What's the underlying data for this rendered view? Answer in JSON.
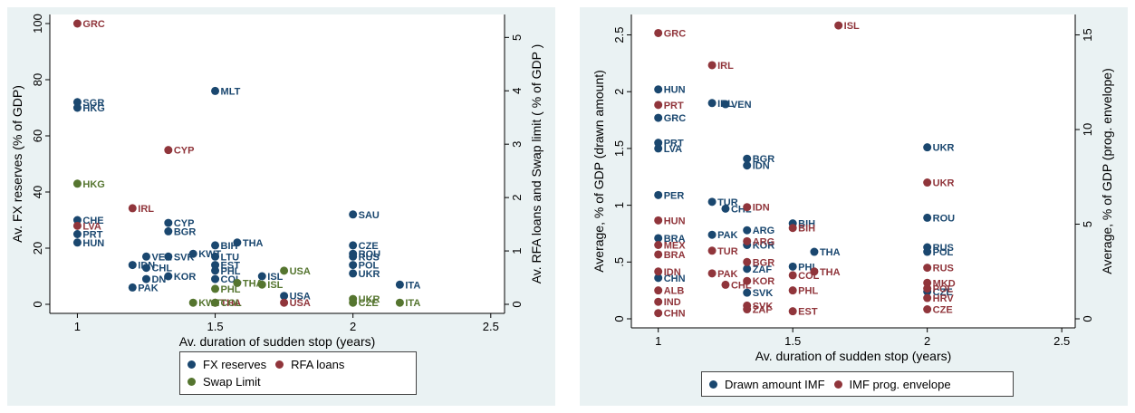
{
  "colors": {
    "navy": "#1a476f",
    "maroon": "#90353b",
    "olive": "#55752f"
  },
  "chart_data": [
    {
      "type": "scatter",
      "xlabel": "Av. duration of sudden stop (years)",
      "ylabel": "Av. FX reserves (% of GDP)",
      "ylabel_right": "Av. RFA loans and Swap limit ( % of GDP )",
      "xlim": [
        1,
        2.5
      ],
      "xticks": [
        "1",
        "1.5",
        "2",
        "2.5"
      ],
      "ylim": [
        0,
        100
      ],
      "yticks": [
        "0",
        "20",
        "40",
        "60",
        "80",
        "100"
      ],
      "ylim_right": [
        0,
        5.26
      ],
      "yticks_right": [
        "0",
        "1",
        "2",
        "3",
        "4",
        "5"
      ],
      "legend_position": "bottom",
      "series": [
        {
          "name": "FX reserves",
          "color": "#1a476f",
          "axis": "left",
          "points": [
            {
              "label": "SGR",
              "x": 1.0,
              "y": 72
            },
            {
              "label": "HKG",
              "x": 1.0,
              "y": 70
            },
            {
              "label": "CHE",
              "x": 1.0,
              "y": 30
            },
            {
              "label": "PRT",
              "x": 1.0,
              "y": 25
            },
            {
              "label": "HUN",
              "x": 1.0,
              "y": 22
            },
            {
              "label": "MLT",
              "x": 1.5,
              "y": 76
            },
            {
              "label": "CYP",
              "x": 1.33,
              "y": 29
            },
            {
              "label": "BGR",
              "x": 1.33,
              "y": 26
            },
            {
              "label": "VEN",
              "x": 1.25,
              "y": 17
            },
            {
              "label": "SVK",
              "x": 1.33,
              "y": 17
            },
            {
              "label": "KWT",
              "x": 1.42,
              "y": 18
            },
            {
              "label": "BIH",
              "x": 1.5,
              "y": 21
            },
            {
              "label": "THA",
              "x": 1.58,
              "y": 22
            },
            {
              "label": "LTU",
              "x": 1.5,
              "y": 17
            },
            {
              "label": "EST",
              "x": 1.5,
              "y": 14
            },
            {
              "label": "PHL",
              "x": 1.5,
              "y": 12
            },
            {
              "label": "COL",
              "x": 1.5,
              "y": 9
            },
            {
              "label": "ISL",
              "x": 1.67,
              "y": 10
            },
            {
              "label": "IDN",
              "x": 1.2,
              "y": 14
            },
            {
              "label": "CHL",
              "x": 1.25,
              "y": 13
            },
            {
              "label": "DN",
              "x": 1.25,
              "y": 9
            },
            {
              "label": "KOR",
              "x": 1.33,
              "y": 10
            },
            {
              "label": "PAK",
              "x": 1.2,
              "y": 6
            },
            {
              "label": "SAU",
              "x": 2.0,
              "y": 32
            },
            {
              "label": "CZE",
              "x": 2.0,
              "y": 21
            },
            {
              "label": "ROU",
              "x": 2.0,
              "y": 18
            },
            {
              "label": "RUS",
              "x": 2.0,
              "y": 17
            },
            {
              "label": "POL",
              "x": 2.0,
              "y": 14
            },
            {
              "label": "UKR",
              "x": 2.0,
              "y": 11
            },
            {
              "label": "USA",
              "x": 1.75,
              "y": 3
            },
            {
              "label": "ITA",
              "x": 2.17,
              "y": 7
            }
          ]
        },
        {
          "name": "RFA loans",
          "color": "#90353b",
          "axis": "right",
          "points": [
            {
              "label": "GRC",
              "x": 1.0,
              "y": 5.26
            },
            {
              "label": "CYP",
              "x": 1.33,
              "y": 2.89
            },
            {
              "label": "IRL",
              "x": 1.2,
              "y": 1.8
            },
            {
              "label": "LVA",
              "x": 1.0,
              "y": 1.47
            },
            {
              "label": "THA",
              "x": 1.5,
              "y": 0.03
            },
            {
              "label": "USA",
              "x": 1.75,
              "y": 0.03
            }
          ]
        },
        {
          "name": "Swap Limit",
          "color": "#55752f",
          "axis": "right",
          "points": [
            {
              "label": "HKG",
              "x": 1.0,
              "y": 2.26
            },
            {
              "label": "USA",
              "x": 1.75,
              "y": 0.63
            },
            {
              "label": "ISL",
              "x": 1.67,
              "y": 0.37
            },
            {
              "label": "THA",
              "x": 1.58,
              "y": 0.4
            },
            {
              "label": "PHL",
              "x": 1.5,
              "y": 0.29
            },
            {
              "label": "KWT",
              "x": 1.42,
              "y": 0.03
            },
            {
              "label": "COL",
              "x": 1.5,
              "y": 0.03
            },
            {
              "label": "UKR",
              "x": 2.0,
              "y": 0.1
            },
            {
              "label": "ITA",
              "x": 2.17,
              "y": 0.03
            },
            {
              "label": "CZE",
              "x": 2.0,
              "y": 0.03
            }
          ]
        }
      ]
    },
    {
      "type": "scatter",
      "xlabel": "Av. duration of sudden stop (years)",
      "ylabel": "Average, % of GDP (drawn amount)",
      "ylabel_right": "Average, % of GDP (prog. envelope)",
      "xlim": [
        1,
        2.5
      ],
      "xticks": [
        "1",
        "1.5",
        "2",
        "2.5"
      ],
      "ylim": [
        0,
        2.6
      ],
      "yticks": [
        "0",
        ".5",
        "1",
        "1.5",
        "2",
        "2.5"
      ],
      "ylim_right": [
        0,
        15.6
      ],
      "yticks_right": [
        "0",
        "5",
        "10",
        "15"
      ],
      "legend_position": "bottom",
      "series": [
        {
          "name": "Drawn amount IMF",
          "color": "#1a476f",
          "axis": "left",
          "points": [
            {
              "label": "HUN",
              "x": 1.0,
              "y": 2.02
            },
            {
              "label": "GRC",
              "x": 1.0,
              "y": 1.77
            },
            {
              "label": "PRT",
              "x": 1.0,
              "y": 1.55
            },
            {
              "label": "LVA",
              "x": 1.0,
              "y": 1.5
            },
            {
              "label": "PER",
              "x": 1.0,
              "y": 1.09
            },
            {
              "label": "BRA",
              "x": 1.0,
              "y": 0.71
            },
            {
              "label": "CHN",
              "x": 1.0,
              "y": 0.36
            },
            {
              "label": "IRL",
              "x": 1.2,
              "y": 1.9
            },
            {
              "label": "VEN",
              "x": 1.25,
              "y": 1.89
            },
            {
              "label": "TUR",
              "x": 1.2,
              "y": 1.03
            },
            {
              "label": "CHL",
              "x": 1.25,
              "y": 0.97
            },
            {
              "label": "PAK",
              "x": 1.2,
              "y": 0.74
            },
            {
              "label": "BGR",
              "x": 1.33,
              "y": 1.41
            },
            {
              "label": "IDN",
              "x": 1.33,
              "y": 1.35
            },
            {
              "label": "ARG",
              "x": 1.33,
              "y": 0.78
            },
            {
              "label": "KOR",
              "x": 1.33,
              "y": 0.65
            },
            {
              "label": "ZAF",
              "x": 1.33,
              "y": 0.44
            },
            {
              "label": "SVK",
              "x": 1.33,
              "y": 0.23
            },
            {
              "label": "BIH",
              "x": 1.5,
              "y": 0.84
            },
            {
              "label": "PHL",
              "x": 1.5,
              "y": 0.46
            },
            {
              "label": "THA",
              "x": 1.58,
              "y": 0.59
            },
            {
              "label": "UKR",
              "x": 2.0,
              "y": 1.51
            },
            {
              "label": "ROU",
              "x": 2.0,
              "y": 0.89
            },
            {
              "label": "RUS",
              "x": 2.0,
              "y": 0.63
            },
            {
              "label": "POL",
              "x": 2.0,
              "y": 0.59
            },
            {
              "label": "CZE",
              "x": 2.0,
              "y": 0.24
            }
          ]
        },
        {
          "name": "IMF prog. envelope",
          "color": "#90353b",
          "axis": "right",
          "points": [
            {
              "label": "GRC",
              "x": 1.0,
              "y": 15.1
            },
            {
              "label": "PRT",
              "x": 1.0,
              "y": 11.3
            },
            {
              "label": "HUN",
              "x": 1.0,
              "y": 5.2
            },
            {
              "label": "MEX",
              "x": 1.0,
              "y": 3.9
            },
            {
              "label": "BRA",
              "x": 1.0,
              "y": 3.4
            },
            {
              "label": "IDN",
              "x": 1.0,
              "y": 2.5
            },
            {
              "label": "ALB",
              "x": 1.0,
              "y": 1.5
            },
            {
              "label": "IND",
              "x": 1.0,
              "y": 0.9
            },
            {
              "label": "CHN",
              "x": 1.0,
              "y": 0.3
            },
            {
              "label": "IRL",
              "x": 1.2,
              "y": 13.4
            },
            {
              "label": "TUR",
              "x": 1.2,
              "y": 3.6
            },
            {
              "label": "PAK",
              "x": 1.2,
              "y": 2.4
            },
            {
              "label": "CHL",
              "x": 1.25,
              "y": 1.8
            },
            {
              "label": "IDN",
              "x": 1.33,
              "y": 5.9
            },
            {
              "label": "BIH",
              "x": 1.5,
              "y": 4.8
            },
            {
              "label": "ARG",
              "x": 1.33,
              "y": 4.1
            },
            {
              "label": "BGR",
              "x": 1.33,
              "y": 3.0
            },
            {
              "label": "KOR",
              "x": 1.33,
              "y": 2.0
            },
            {
              "label": "SVK",
              "x": 1.33,
              "y": 0.7
            },
            {
              "label": "ZAF",
              "x": 1.33,
              "y": 0.5
            },
            {
              "label": "COL",
              "x": 1.5,
              "y": 2.3
            },
            {
              "label": "PHL",
              "x": 1.5,
              "y": 1.5
            },
            {
              "label": "THA",
              "x": 1.58,
              "y": 2.5
            },
            {
              "label": "EST",
              "x": 1.5,
              "y": 0.4
            },
            {
              "label": "ISL",
              "x": 1.67,
              "y": 15.5
            },
            {
              "label": "UKR",
              "x": 2.0,
              "y": 7.2
            },
            {
              "label": "RUS",
              "x": 2.0,
              "y": 2.7
            },
            {
              "label": "MKD",
              "x": 2.0,
              "y": 1.9
            },
            {
              "label": "POL",
              "x": 2.0,
              "y": 1.6
            },
            {
              "label": "HRV",
              "x": 2.0,
              "y": 1.1
            },
            {
              "label": "CZE",
              "x": 2.0,
              "y": 0.5
            }
          ]
        }
      ]
    }
  ]
}
